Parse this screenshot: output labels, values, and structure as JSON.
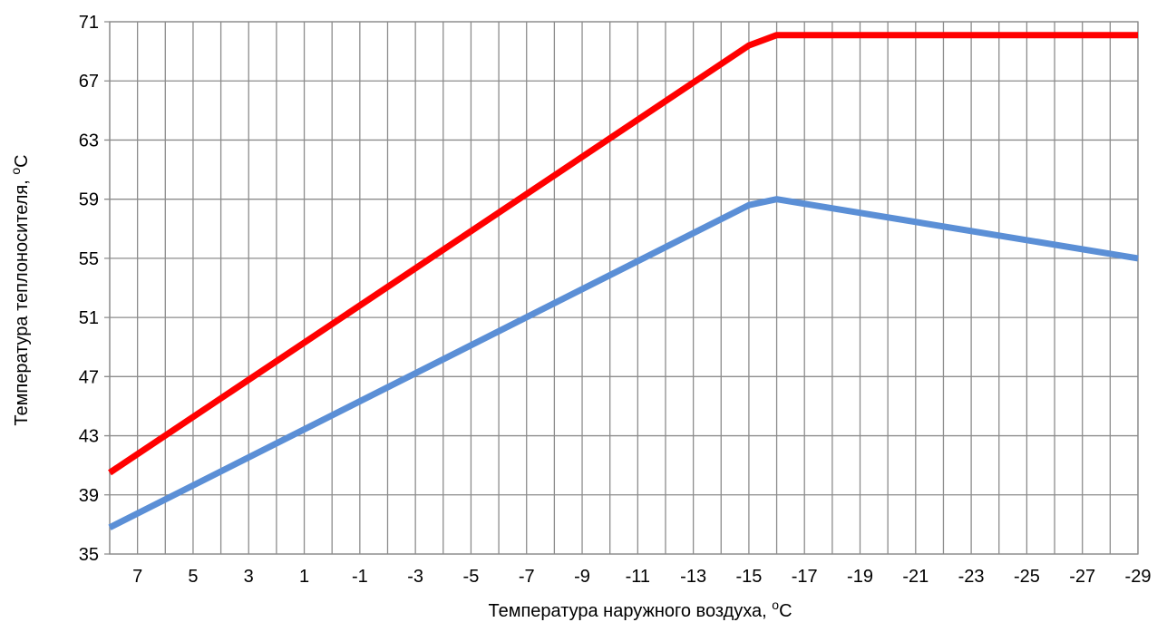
{
  "chart_data": {
    "type": "line",
    "xlabel": "Температура наружного воздуха, ",
    "xlabel_unit": "С",
    "ylabel": "Температура теплоносителя, ",
    "ylabel_unit": "С",
    "degree_mark": "о",
    "x_ticks": [
      "7",
      "5",
      "3",
      "1",
      "-1",
      "-3",
      "-5",
      "-7",
      "-9",
      "-11",
      "-13",
      "-15",
      "-17",
      "-19",
      "-21",
      "-23",
      "-25",
      "-27",
      "-29"
    ],
    "x_range": [
      8,
      -29
    ],
    "y_ticks": [
      35,
      39,
      43,
      47,
      51,
      55,
      59,
      63,
      67,
      71
    ],
    "ylim": [
      35,
      71
    ],
    "grid": true,
    "legend": "none",
    "series": [
      {
        "color": "#ff0000",
        "points": [
          [
            8,
            40.5
          ],
          [
            -15,
            69.4
          ],
          [
            -16,
            70.1
          ],
          [
            -29,
            70.1
          ]
        ]
      },
      {
        "color": "#5b8fd6",
        "points": [
          [
            8,
            36.8
          ],
          [
            -15,
            58.6
          ],
          [
            -16,
            59.0
          ],
          [
            -29,
            55.0
          ]
        ]
      }
    ]
  }
}
